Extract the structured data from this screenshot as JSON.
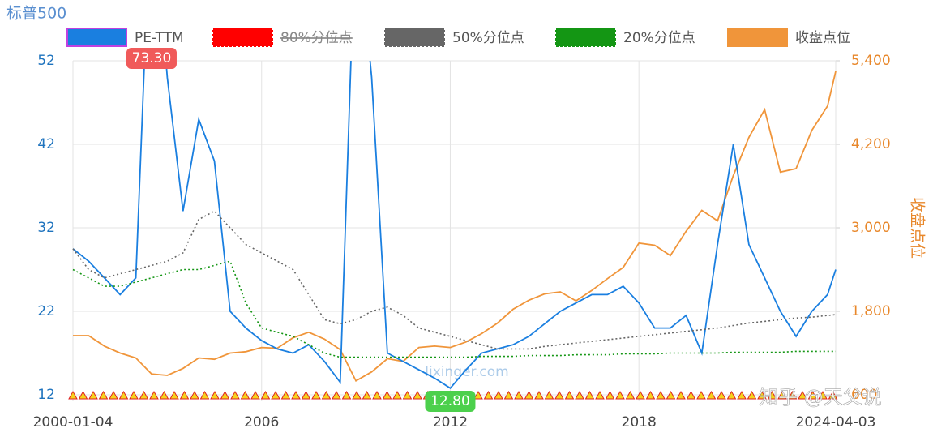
{
  "chart_data": {
    "type": "line",
    "title": "标普500",
    "y2_label": "收盘点位",
    "x": [
      2000,
      2000.5,
      2001,
      2001.5,
      2002,
      2002.5,
      2003,
      2003.5,
      2004,
      2004.5,
      2005,
      2005.5,
      2006,
      2006.5,
      2007,
      2007.5,
      2008,
      2008.5,
      2009,
      2009.5,
      2010,
      2010.5,
      2011,
      2011.5,
      2012,
      2012.5,
      2013,
      2013.5,
      2014,
      2014.5,
      2015,
      2015.5,
      2016,
      2016.5,
      2017,
      2017.5,
      2018,
      2018.5,
      2019,
      2019.5,
      2020,
      2020.5,
      2021,
      2021.5,
      2022,
      2022.5,
      2023,
      2023.5,
      2024,
      2024.26
    ],
    "xlim": [
      2000,
      2024.26
    ],
    "xticks": [
      {
        "value": 2000,
        "label": "2000-01-04"
      },
      2006,
      2012,
      2018,
      {
        "value": 2024.26,
        "label": "2024-04-03"
      }
    ],
    "ylim": [
      12,
      52
    ],
    "yticks": [
      12,
      22,
      32,
      42,
      52
    ],
    "y2lim": [
      600,
      5400
    ],
    "y2ticks": [
      600,
      {
        "value": 1800,
        "label": "1,800"
      },
      {
        "value": 3000,
        "label": "3,000"
      },
      {
        "value": 4200,
        "label": "4,200"
      },
      {
        "value": 5400,
        "label": "5,400"
      }
    ],
    "grid": true,
    "series": [
      {
        "name": "PE-TTM",
        "color": "#1a7fe0",
        "style": "solid",
        "values": [
          29.5,
          28,
          26,
          24,
          26,
          73.3,
          50,
          34,
          45,
          40,
          22,
          20,
          18.5,
          17.5,
          17,
          18,
          16,
          13.5,
          70,
          50,
          17,
          16,
          15,
          14,
          12.8,
          15,
          17,
          17.5,
          18,
          19,
          20.5,
          22,
          23,
          24,
          24,
          25,
          23,
          20,
          20,
          21.5,
          17,
          30,
          42,
          30,
          26,
          22,
          19,
          22,
          24,
          27
        ]
      },
      {
        "name": "80%分位点",
        "color": "#ff0000",
        "hidden": true
      },
      {
        "name": "50%分位点",
        "color": "#666666",
        "style": "dotted",
        "values": [
          29.5,
          27,
          26,
          26.5,
          27,
          27.5,
          28,
          29,
          33,
          34,
          32,
          30,
          29,
          28,
          27,
          24,
          21,
          20.5,
          21,
          22,
          22.5,
          21.5,
          20,
          19.5,
          19,
          18.5,
          18,
          17.5,
          17.5,
          17.5,
          17.8,
          18,
          18.2,
          18.4,
          18.6,
          18.8,
          19,
          19.2,
          19.4,
          19.6,
          19.8,
          20,
          20.3,
          20.6,
          20.8,
          21,
          21.2,
          21.3,
          21.5,
          21.6
        ]
      },
      {
        "name": "20%分位点",
        "color": "#149614",
        "style": "dotted",
        "values": [
          27,
          26,
          25,
          25,
          25.5,
          26,
          26.5,
          27,
          27,
          27.5,
          28,
          23,
          20,
          19.5,
          19,
          18,
          17,
          16.5,
          16.5,
          16.5,
          16.5,
          16.5,
          16.5,
          16.5,
          16.5,
          16.5,
          16.6,
          16.6,
          16.6,
          16.7,
          16.7,
          16.7,
          16.8,
          16.8,
          16.8,
          16.9,
          16.9,
          16.9,
          17,
          17,
          17,
          17,
          17.1,
          17.1,
          17.1,
          17.1,
          17.2,
          17.2,
          17.2,
          17.2
        ]
      },
      {
        "name": "收盘点位",
        "color": "#f0953a",
        "style": "solid",
        "axis": "y2",
        "values": [
          1450,
          1450,
          1300,
          1200,
          1130,
          900,
          880,
          980,
          1130,
          1110,
          1200,
          1220,
          1280,
          1270,
          1420,
          1500,
          1400,
          1250,
          800,
          930,
          1120,
          1080,
          1280,
          1300,
          1280,
          1360,
          1480,
          1630,
          1830,
          1960,
          2050,
          2080,
          1950,
          2100,
          2270,
          2430,
          2780,
          2750,
          2600,
          2950,
          3250,
          3100,
          3750,
          4300,
          4700,
          3800,
          3850,
          4400,
          4750,
          5250
        ]
      }
    ],
    "annotations": {
      "max": "73.30",
      "min": "12.80"
    },
    "watermarks": [
      "lixinger.com",
      "知乎 @天父说"
    ]
  }
}
